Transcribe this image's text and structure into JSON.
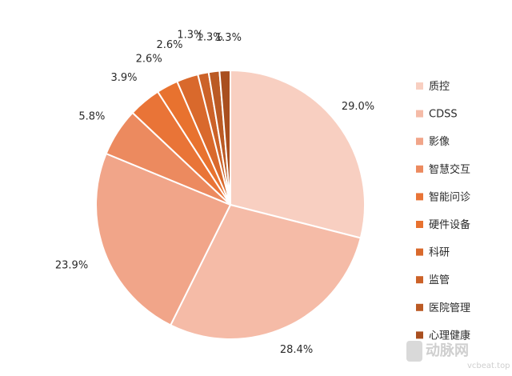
{
  "chart_data": {
    "type": "pie",
    "title": "",
    "legend_position": "right",
    "start_angle_deg": 0,
    "direction": "clockwise",
    "slices": [
      {
        "name": "质控",
        "value": 29.0,
        "label": "29.0%",
        "color": "#f8cfc1"
      },
      {
        "name": "CDSS",
        "value": 28.4,
        "label": "28.4%",
        "color": "#f5bba7"
      },
      {
        "name": "影像",
        "value": 23.9,
        "label": "23.9%",
        "color": "#f1a589"
      },
      {
        "name": "智慧交互",
        "value": 5.8,
        "label": "5.8%",
        "color": "#ec8a5f"
      },
      {
        "name": "智能问诊",
        "value": 3.9,
        "label": "3.9%",
        "color": "#e97437"
      },
      {
        "name": "硬件设备",
        "value": 2.6,
        "label": "2.6%",
        "color": "#e8722f"
      },
      {
        "name": "科研",
        "value": 2.6,
        "label": "2.6%",
        "color": "#d9692c"
      },
      {
        "name": "监管",
        "value": 1.3,
        "label": "1.3%",
        "color": "#cc6228"
      },
      {
        "name": "医院管理",
        "value": 1.3,
        "label": "1.3%",
        "color": "#bb5a24"
      },
      {
        "name": "心理健康",
        "value": 1.3,
        "label": "1.3%",
        "color": "#a94f1f"
      }
    ]
  },
  "watermark": {
    "brand": "动脉网",
    "url": "vcbeat.top"
  }
}
